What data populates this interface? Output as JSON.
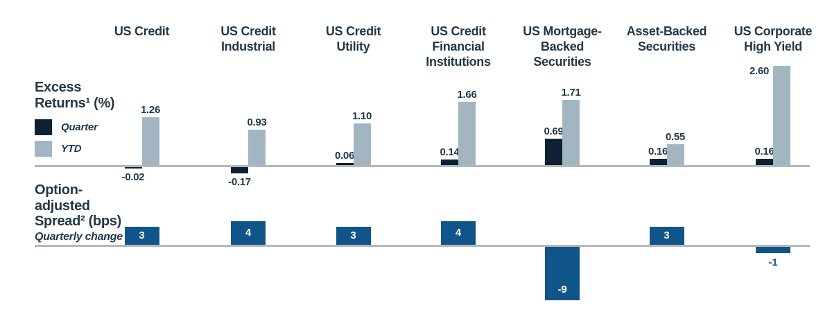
{
  "colors": {
    "quarter": "#0d2133",
    "ytd": "#a2b6c2",
    "spread": "#10558a",
    "text": "#22384a",
    "baseline": "#b6b7b9",
    "inside_label": "#ffffff"
  },
  "excess_section": {
    "title_line1": "Excess",
    "title_line2": "Returns¹ (%)",
    "legend": [
      {
        "label": "Quarter"
      },
      {
        "label": "YTD"
      }
    ]
  },
  "spread_section": {
    "title_line1": "Option-",
    "title_line2": "adjusted",
    "title_line3": "Spread² (bps)",
    "subtitle": "Quarterly change"
  },
  "chart_data": {
    "type": "bar",
    "categories": [
      "US Credit",
      "US Credit Industrial",
      "US Credit Utility",
      "US Credit Financial Institutions",
      "US Mortgage-Backed Securities",
      "Asset-Backed Securities",
      "US Corporate High Yield"
    ],
    "categories_wrapped": [
      "US Credit",
      "US Credit\nIndustrial",
      "US Credit\nUtility",
      "US Credit\nFinancial\nInstitutions",
      "US Mortgage-\nBacked\nSecurities",
      "Asset-Backed\nSecurities",
      "US Corporate\nHigh Yield"
    ],
    "sections": [
      {
        "name": "Excess Returns (%)",
        "series": [
          {
            "name": "Quarter",
            "values": [
              -0.02,
              -0.17,
              0.06,
              0.14,
              0.69,
              0.16,
              0.16
            ],
            "labels": [
              "-0.02",
              "-0.17",
              "0.06",
              "0.14",
              "0.69",
              "0.16",
              "0.16"
            ]
          },
          {
            "name": "YTD",
            "values": [
              1.26,
              0.93,
              1.1,
              1.66,
              1.71,
              0.55,
              2.6
            ],
            "labels": [
              "1.26",
              "0.93",
              "1.10",
              "1.66",
              "1.71",
              "0.55",
              "2.60"
            ]
          }
        ]
      },
      {
        "name": "Option-adjusted Spread (bps) quarterly change",
        "series": [
          {
            "name": "Quarterly change",
            "values": [
              3,
              4,
              3,
              4,
              -9,
              3,
              -1
            ],
            "labels": [
              "3",
              "4",
              "3",
              "4",
              "-9",
              "3",
              "-1"
            ]
          }
        ]
      }
    ],
    "ylim_excess": [
      -0.5,
      2.8
    ],
    "ylim_spread": [
      -10,
      5
    ],
    "legend_position": "left",
    "grid": false
  }
}
